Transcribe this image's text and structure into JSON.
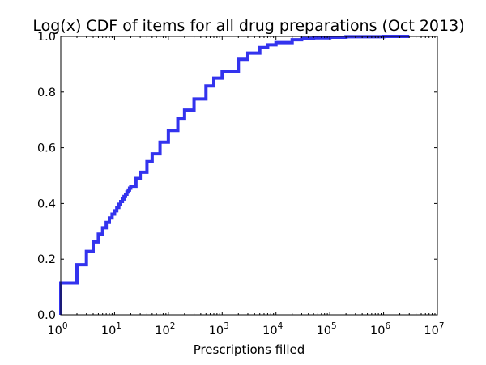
{
  "chart_data": {
    "type": "line",
    "title": "Log(x) CDF of items for all drug preparations (Oct 2013)",
    "xlabel": "Prescriptions filled",
    "ylabel": "",
    "x_scale": "log",
    "xlim": [
      1,
      10000000
    ],
    "ylim": [
      0.0,
      1.0
    ],
    "grid": false,
    "x_ticks": [
      {
        "base": "10",
        "exp": "0"
      },
      {
        "base": "10",
        "exp": "1"
      },
      {
        "base": "10",
        "exp": "2"
      },
      {
        "base": "10",
        "exp": "3"
      },
      {
        "base": "10",
        "exp": "4"
      },
      {
        "base": "10",
        "exp": "5"
      },
      {
        "base": "10",
        "exp": "6"
      },
      {
        "base": "10",
        "exp": "7"
      }
    ],
    "y_ticks": [
      "0.0",
      "0.2",
      "0.4",
      "0.6",
      "0.8",
      "1.0"
    ],
    "series": [
      {
        "color": "#3333ee",
        "step": "post",
        "x": [
          1,
          2,
          3,
          4,
          5,
          6,
          7,
          8,
          9,
          10,
          11,
          12,
          13,
          14,
          15,
          16,
          17,
          18,
          19,
          20,
          25,
          30,
          40,
          50,
          70,
          100,
          150,
          200,
          300,
          500,
          700,
          1000,
          2000,
          3000,
          5000,
          7000,
          10000,
          20000,
          30000,
          50000,
          100000,
          200000,
          1000000,
          3000000
        ],
        "y": [
          0.115,
          0.18,
          0.228,
          0.262,
          0.29,
          0.313,
          0.332,
          0.348,
          0.362,
          0.374,
          0.386,
          0.397,
          0.407,
          0.416,
          0.425,
          0.433,
          0.441,
          0.448,
          0.455,
          0.462,
          0.49,
          0.512,
          0.55,
          0.578,
          0.62,
          0.662,
          0.706,
          0.735,
          0.775,
          0.822,
          0.85,
          0.875,
          0.918,
          0.94,
          0.96,
          0.97,
          0.978,
          0.988,
          0.992,
          0.995,
          0.997,
          0.999,
          1.0,
          1.0
        ]
      }
    ]
  }
}
